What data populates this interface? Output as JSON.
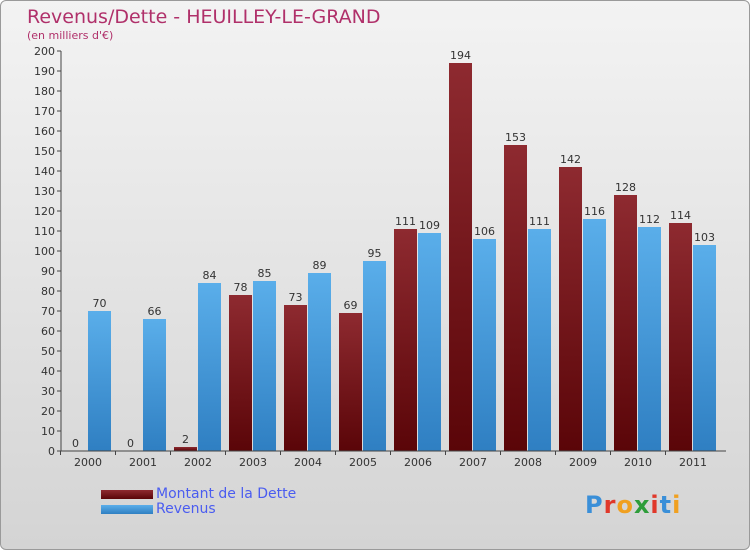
{
  "title": "Revenus/Dette - HEUILLEY-LE-GRAND",
  "subtitle": "(en milliers d'€)",
  "colors": {
    "dette": "#6b0f14",
    "revenus": "#3d93d8",
    "title": "#b0306a",
    "legend_text": "#4a5cf0"
  },
  "chart_data": {
    "type": "bar",
    "categories": [
      "2000",
      "2001",
      "2002",
      "2003",
      "2004",
      "2005",
      "2006",
      "2007",
      "2008",
      "2009",
      "2010",
      "2011"
    ],
    "series": [
      {
        "name": "Montant de la Dette",
        "values": [
          0,
          0,
          2,
          78,
          73,
          69,
          111,
          194,
          153,
          142,
          128,
          114
        ]
      },
      {
        "name": "Revenus",
        "values": [
          70,
          66,
          84,
          85,
          89,
          95,
          109,
          106,
          111,
          116,
          112,
          103
        ]
      }
    ],
    "ylim": [
      0,
      200
    ],
    "yticks": [
      0,
      10,
      20,
      30,
      40,
      50,
      60,
      70,
      80,
      90,
      100,
      110,
      120,
      130,
      140,
      150,
      160,
      170,
      180,
      190,
      200
    ],
    "grid": false,
    "legend": "bottom-left"
  },
  "logo": {
    "letters": [
      "P",
      "r",
      "o",
      "x",
      "i",
      "t",
      "i"
    ],
    "colors": [
      "#3a8fd8",
      "#e0382a",
      "#f0a020",
      "#2e9d3a",
      "#e0382a",
      "#3a8fd8",
      "#f0a020"
    ]
  }
}
